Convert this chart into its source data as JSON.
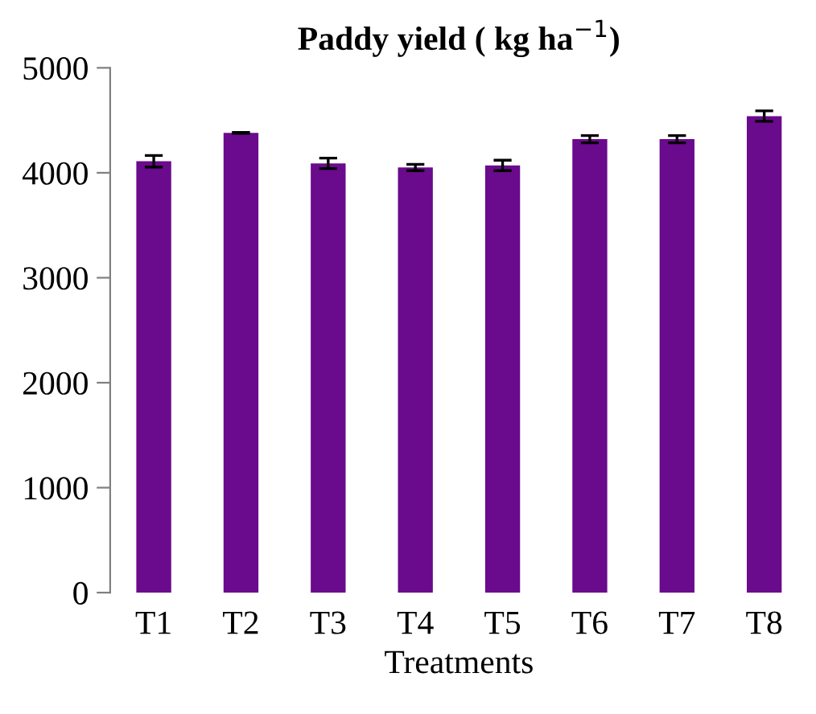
{
  "chart_data": {
    "type": "bar",
    "title": "Paddy yield ( kg ha$^{−1}$)",
    "xlabel": "Treatments",
    "categories": [
      "T1",
      "T2",
      "T3",
      "T4",
      "T5",
      "T6",
      "T7",
      "T8"
    ],
    "values": [
      4110,
      4380,
      4090,
      4050,
      4070,
      4320,
      4320,
      4540
    ],
    "errors": [
      55,
      5,
      50,
      30,
      50,
      35,
      35,
      50
    ],
    "color": "#6a0a8c",
    "ylim": [
      0,
      5000
    ],
    "yticks": [
      0,
      1000,
      2000,
      3000,
      4000,
      5000
    ],
    "grid": false
  }
}
